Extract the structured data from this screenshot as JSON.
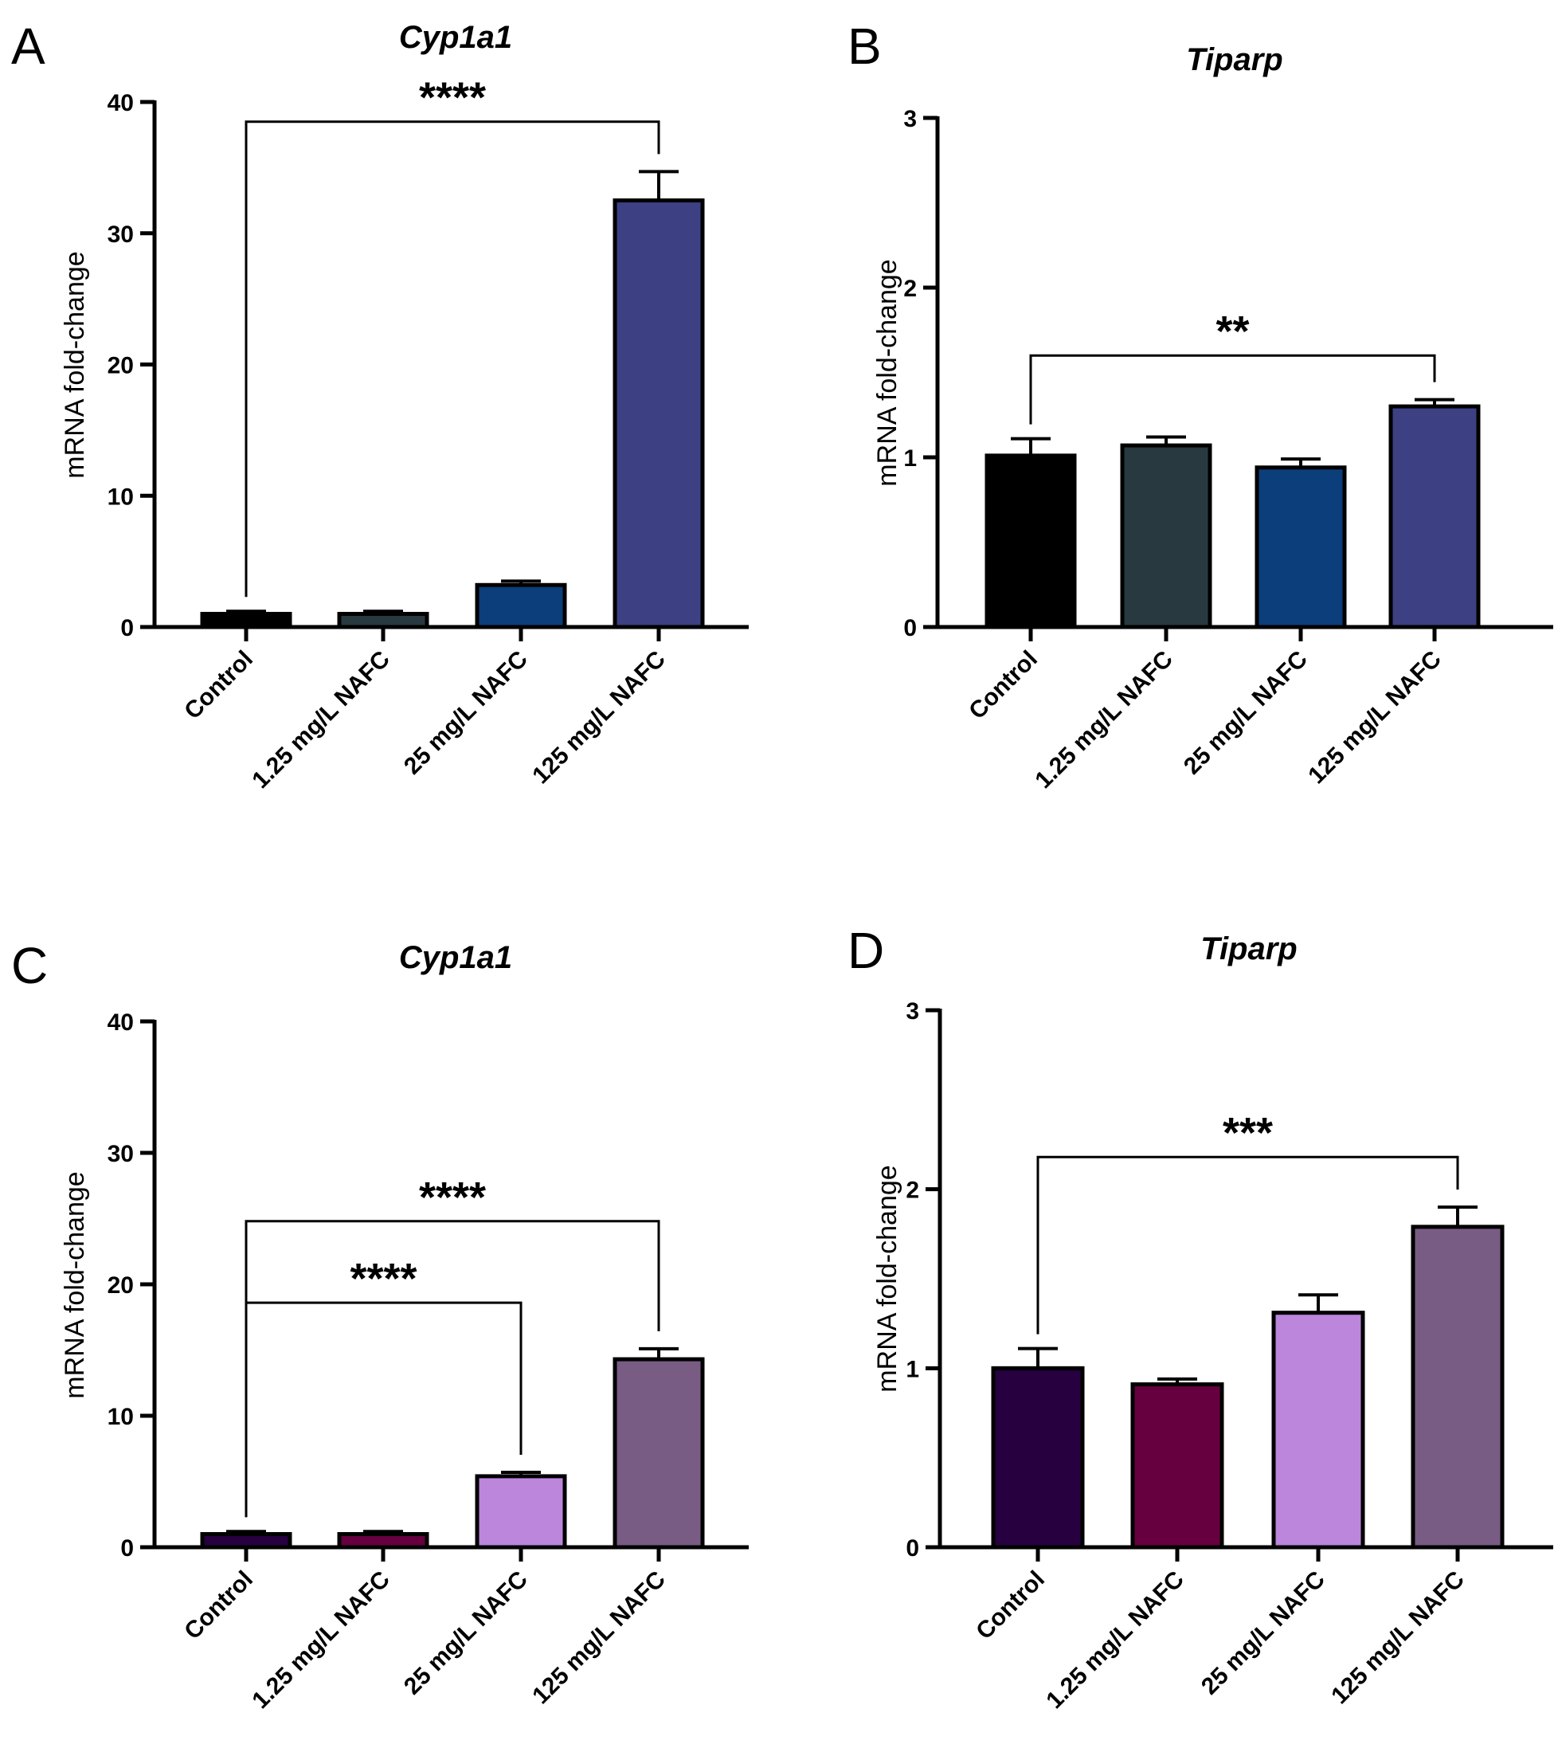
{
  "chart_data": [
    {
      "panel": "A",
      "type": "bar",
      "title": "Cyp1a1",
      "xlabel": "",
      "ylabel": "mRNA fold-change",
      "ylim": [
        0,
        40
      ],
      "yticks": [
        0,
        10,
        20,
        30,
        40
      ],
      "categories": [
        "Control",
        "1.25 mg/L NAFC",
        "25 mg/L NAFC",
        "125 mg/L NAFC"
      ],
      "values": [
        1.0,
        1.0,
        3.2,
        32.5
      ],
      "errors": [
        0.2,
        0.2,
        0.3,
        2.2
      ],
      "colors": [
        "#000000",
        "#283a40",
        "#0b3e7a",
        "#3d4082"
      ],
      "significance": [
        {
          "from": 0,
          "to": 3,
          "label": "****",
          "y": 38.5
        }
      ]
    },
    {
      "panel": "B",
      "type": "bar",
      "title": "Tiparp",
      "xlabel": "",
      "ylabel": "mRNA fold-change",
      "ylim": [
        0,
        3
      ],
      "yticks": [
        0,
        1,
        2,
        3
      ],
      "categories": [
        "Control",
        "1.25 mg/L NAFC",
        "25 mg/L NAFC",
        "125 mg/L NAFC"
      ],
      "values": [
        1.01,
        1.07,
        0.94,
        1.3
      ],
      "errors": [
        0.1,
        0.05,
        0.05,
        0.04
      ],
      "colors": [
        "#000000",
        "#283a40",
        "#0b3e7a",
        "#3d4082"
      ],
      "significance": [
        {
          "from": 0,
          "to": 3,
          "label": "**",
          "y": 1.6
        }
      ]
    },
    {
      "panel": "C",
      "type": "bar",
      "title": "Cyp1a1",
      "xlabel": "",
      "ylabel": "mRNA fold-change",
      "ylim": [
        0,
        40
      ],
      "yticks": [
        0,
        10,
        20,
        30,
        40
      ],
      "categories": [
        "Control",
        "1.25 mg/L NAFC",
        "25 mg/L NAFC",
        "125 mg/L NAFC"
      ],
      "values": [
        1.0,
        1.0,
        5.4,
        14.3
      ],
      "errors": [
        0.2,
        0.2,
        0.3,
        0.8
      ],
      "colors": [
        "#26003f",
        "#66003e",
        "#bb86db",
        "#785c84"
      ],
      "significance": [
        {
          "from": 0,
          "to": 2,
          "label": "****",
          "y": 18.6
        },
        {
          "from": 0,
          "to": 3,
          "label": "****",
          "y": 24.8
        }
      ]
    },
    {
      "panel": "D",
      "type": "bar",
      "title": "Tiparp",
      "xlabel": "",
      "ylabel": "mRNA fold-change",
      "ylim": [
        0,
        3
      ],
      "yticks": [
        0,
        1,
        2,
        3
      ],
      "categories": [
        "Control",
        "1.25 mg/L NAFC",
        "25 mg/L NAFC",
        "125 mg/L NAFC"
      ],
      "values": [
        1.0,
        0.91,
        1.31,
        1.79
      ],
      "errors": [
        0.11,
        0.03,
        0.1,
        0.11
      ],
      "colors": [
        "#26003f",
        "#66003e",
        "#bb86db",
        "#785c84"
      ],
      "significance": [
        {
          "from": 0,
          "to": 3,
          "label": "***",
          "y": 2.18
        }
      ]
    }
  ]
}
